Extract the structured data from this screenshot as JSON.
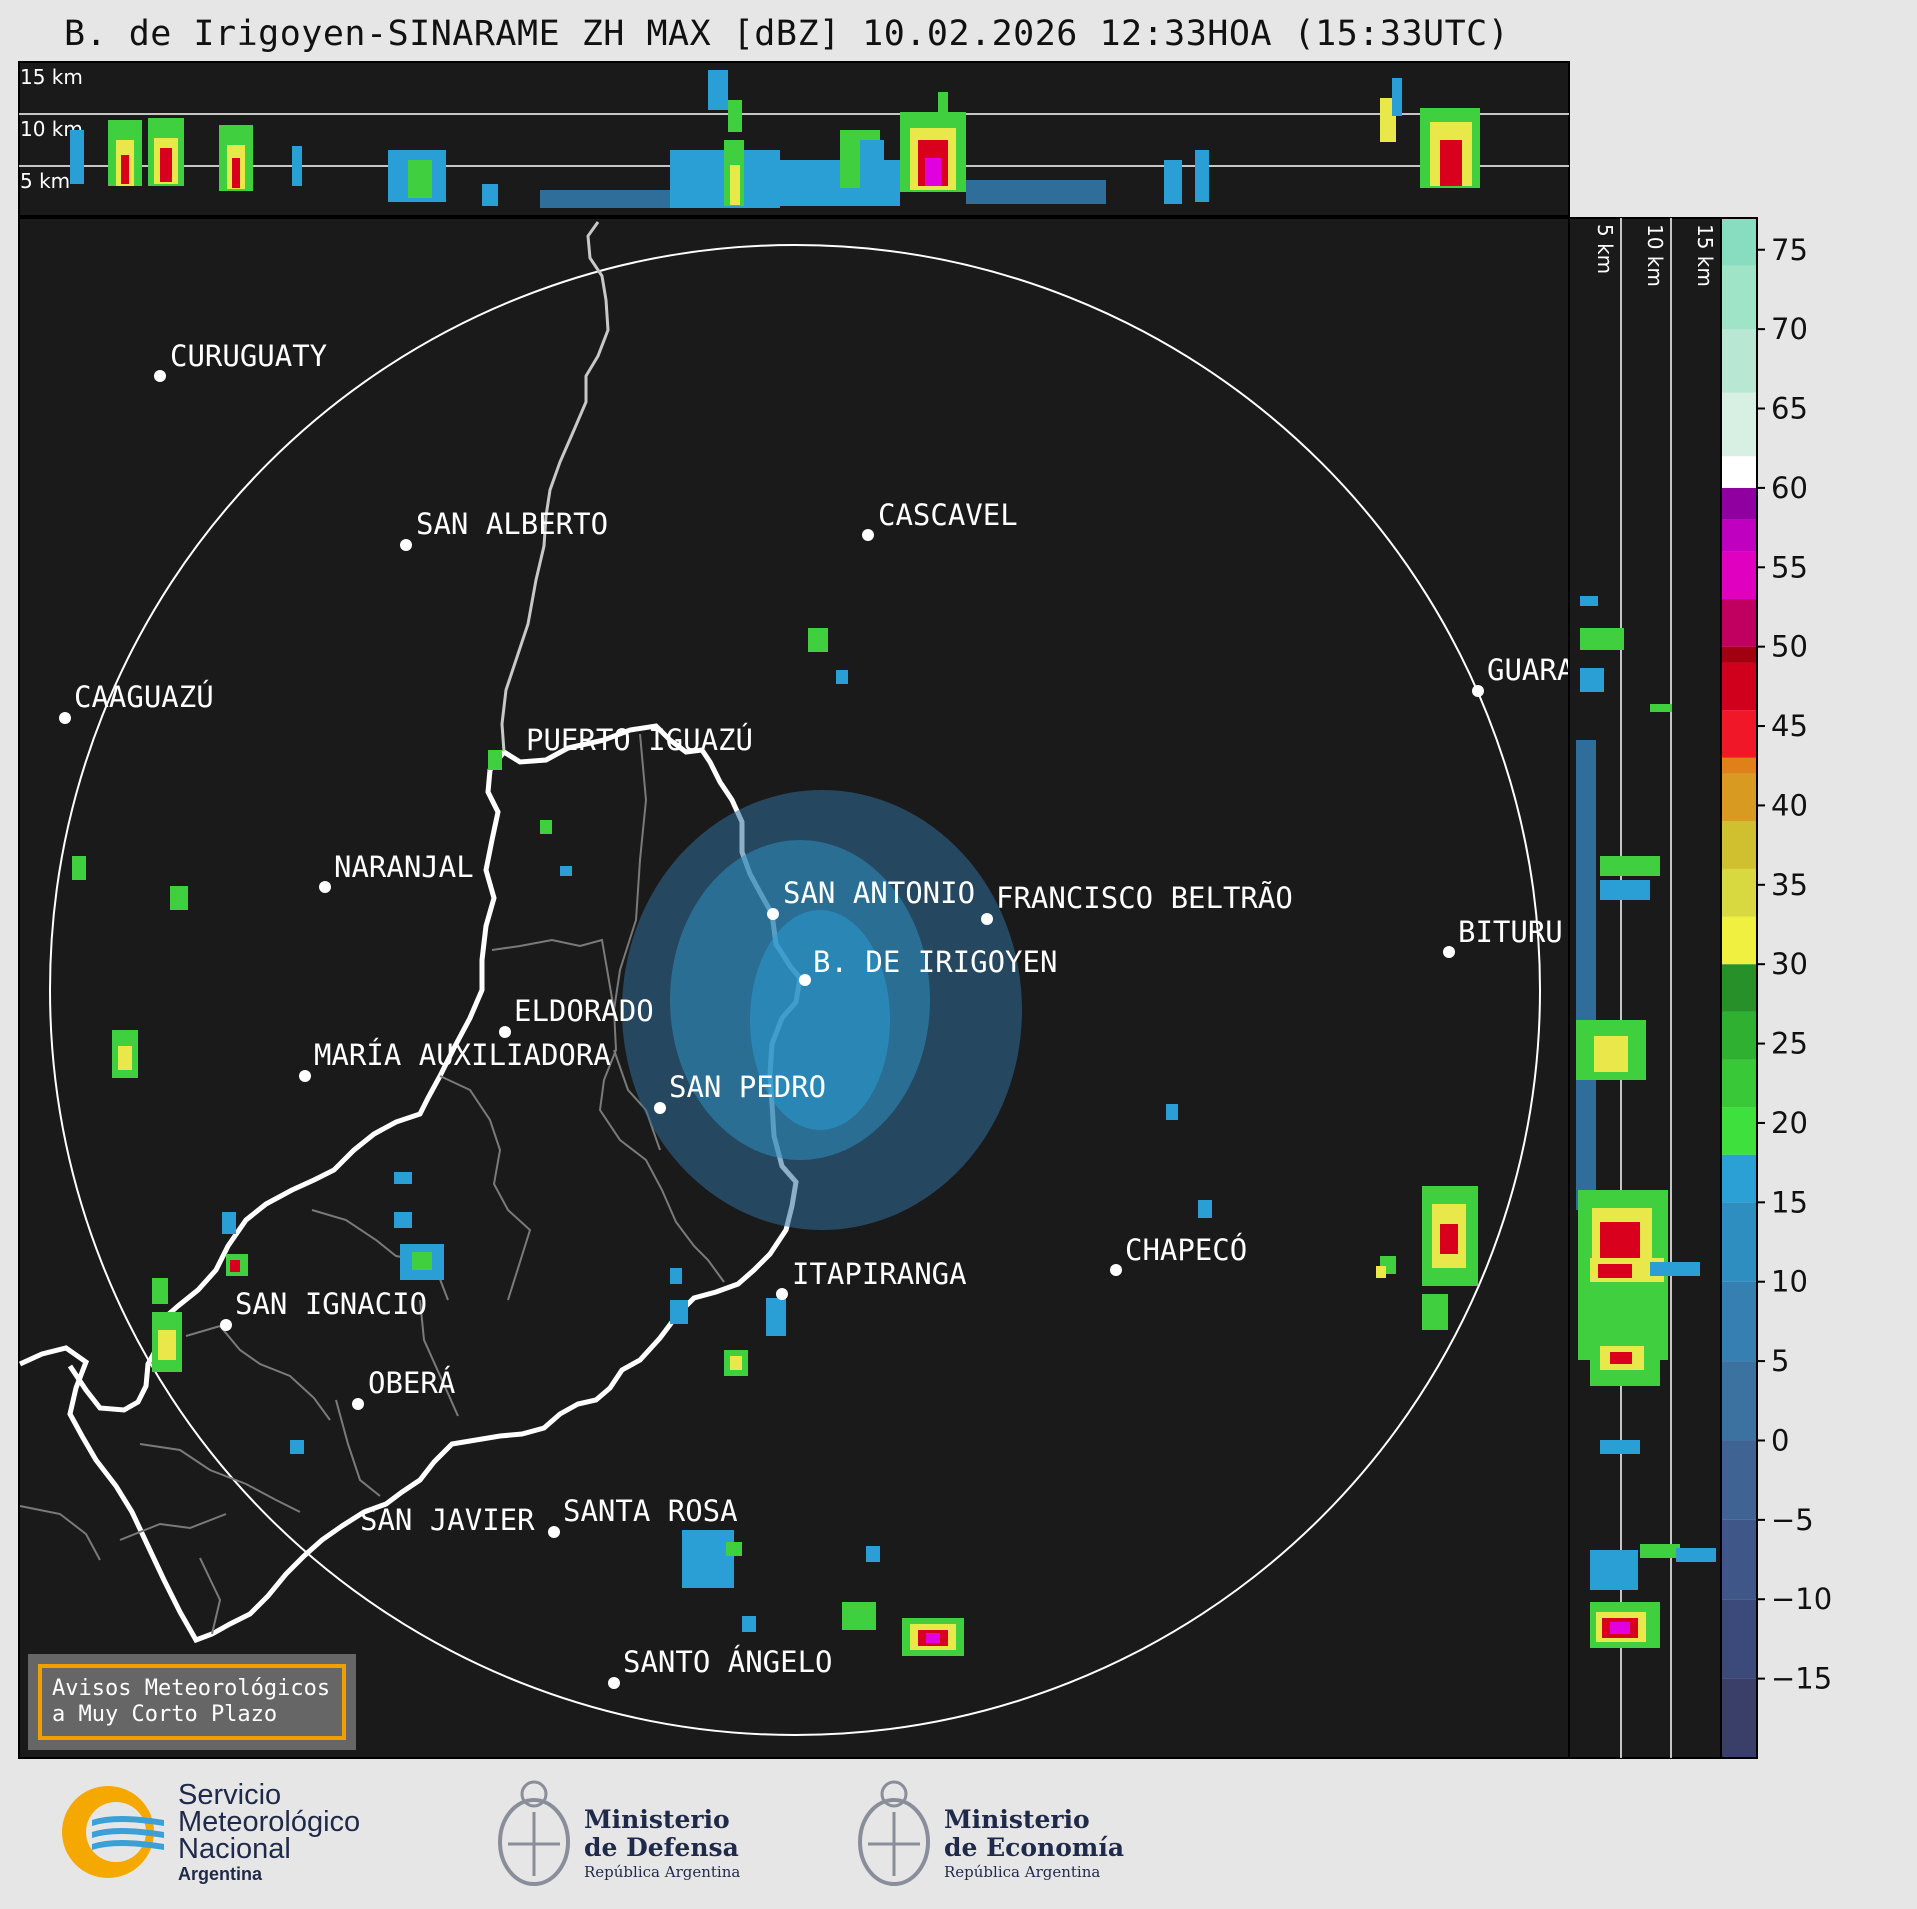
{
  "title": "B. de Irigoyen-SINARAME ZH MAX [dBZ] 10.02.2026 12:33HOA (15:33UTC)",
  "top_panel": {
    "altitude_labels": [
      "15 km",
      "10 km",
      "5 km"
    ]
  },
  "side_panel": {
    "altitude_labels": [
      "5 km",
      "10 km",
      "15 km"
    ]
  },
  "cities": [
    {
      "name": "CURUGUATY"
    },
    {
      "name": "SAN ALBERTO"
    },
    {
      "name": "CASCAVEL"
    },
    {
      "name": "CAAGUAZÚ"
    },
    {
      "name": "GUARA"
    },
    {
      "name": "PUERTO IGUAZÚ"
    },
    {
      "name": "NARANJAL"
    },
    {
      "name": "SAN ANTONIO"
    },
    {
      "name": "FRANCISCO BELTRÃO"
    },
    {
      "name": "BITURU"
    },
    {
      "name": "B. DE IRIGOYEN"
    },
    {
      "name": "ELDORADO"
    },
    {
      "name": "MARÍA AUXILIADORA"
    },
    {
      "name": "SAN PEDRO"
    },
    {
      "name": "CHAPECÓ"
    },
    {
      "name": "ITAPIRANGA"
    },
    {
      "name": "SAN IGNACIO"
    },
    {
      "name": "OBERÁ"
    },
    {
      "name": "SAN JAVIER"
    },
    {
      "name": "SANTA ROSA"
    },
    {
      "name": "SANTO ÁNGELO"
    }
  ],
  "colorbar": {
    "unit": "dBZ",
    "ticks": [
      75,
      70,
      65,
      60,
      55,
      50,
      45,
      40,
      35,
      30,
      25,
      20,
      15,
      10,
      5,
      0,
      -5,
      -10,
      -15
    ],
    "tick_text": [
      "75",
      "70",
      "65",
      "60",
      "55",
      "50",
      "45",
      "40",
      "35",
      "30",
      "25",
      "20",
      "15",
      "10",
      "5",
      "0",
      "−5",
      "−10",
      "−15"
    ],
    "min": -20,
    "max": 77,
    "colors": {
      "ground_clutter_low": "#3b4a7a",
      "light": "#2a9fd6",
      "moderate": "#3fcf3f",
      "yellow": "#e8e84a",
      "orange": "#e0901c",
      "red": "#d8001c",
      "magenta": "#e000e0",
      "white": "#ffffff",
      "teal": "#88e0c0"
    }
  },
  "warning_box": {
    "line1": "Avisos Meteorológicos",
    "line2": "a Muy Corto Plazo"
  },
  "logos": {
    "smn": {
      "line1": "Servicio",
      "line2": "Meteorológico",
      "line3": "Nacional",
      "line4": "Argentina"
    },
    "defensa": {
      "line1": "Ministerio",
      "line2": "de Defensa",
      "line3": "República Argentina"
    },
    "economia": {
      "line1": "Ministerio",
      "line2": "de Economía",
      "line3": "República Argentina"
    }
  }
}
